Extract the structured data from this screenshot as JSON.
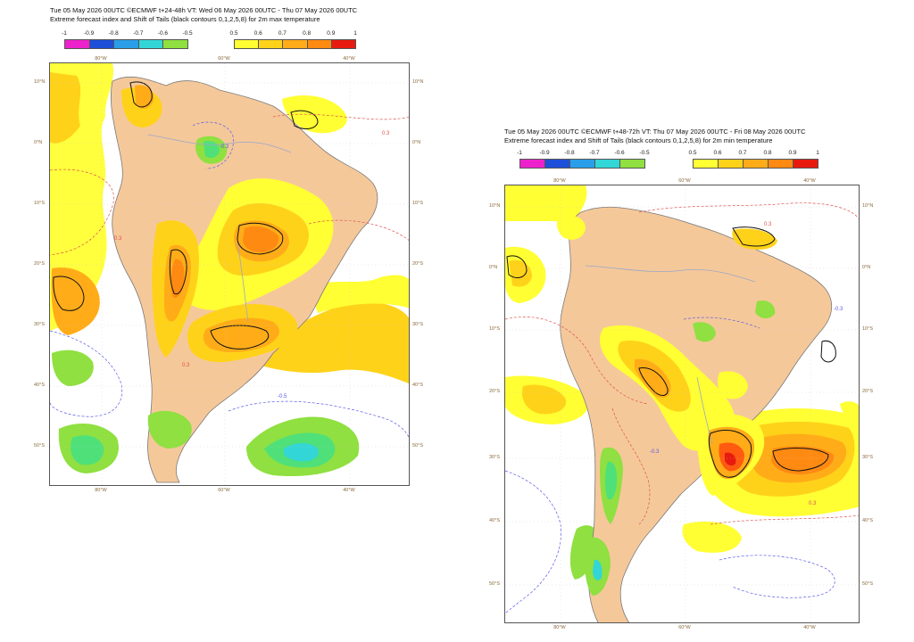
{
  "panels": [
    {
      "header_line1": "Tue 05 May 2026 00UTC ©ECMWF t+24-48h  VT: Wed 06 May 2026 00UTC - Thu 07 May 2026 00UTC",
      "header_line2": "Extreme forecast index and Shift of Tails (black contours 0,1,2,5,8) for 2m max temperature",
      "neg_legend": [
        "-1",
        "-0.9",
        "-0.8",
        "-0.7",
        "-0.6",
        "-0.5"
      ],
      "pos_legend": [
        "0.5",
        "0.6",
        "0.7",
        "0.8",
        "0.9",
        "1"
      ],
      "lat_labels": [
        "10°N",
        "0°N",
        "10°S",
        "20°S",
        "30°S",
        "40°S",
        "50°S"
      ],
      "lon_labels": [
        "80°W",
        "60°W",
        "40°W"
      ],
      "contour_labels": [
        "-0.3",
        "0.3",
        "-0.5",
        "0.3",
        "0.3"
      ]
    },
    {
      "header_line1": "Tue 05 May 2026 00UTC ©ECMWF t+48-72h  VT: Thu 07 May 2026 00UTC - Fri 08 May 2026 00UTC",
      "header_line2": "Extreme forecast index and Shift of Tails (black contours 0,1,2,5,8) for 2m min temperature",
      "neg_legend": [
        "-1",
        "-0.9",
        "-0.8",
        "-0.7",
        "-0.6",
        "-0.5"
      ],
      "pos_legend": [
        "0.5",
        "0.6",
        "0.7",
        "0.8",
        "0.9",
        "1"
      ],
      "lat_labels": [
        "10°N",
        "0°N",
        "10°S",
        "20°S",
        "30°S",
        "40°S",
        "50°S"
      ],
      "lon_labels": [
        "80°W",
        "60°W",
        "40°W"
      ],
      "contour_labels": [
        "-0.3",
        "0.3",
        "0.3",
        "-0.3"
      ]
    }
  ],
  "colors": {
    "neg": [
      "#ee22cc",
      "#1e4fd8",
      "#2a9ee8",
      "#33d6d6",
      "#4fe07a",
      "#8fe040"
    ],
    "pos": [
      "#ffff33",
      "#ffd21a",
      "#ffac18",
      "#ff8a12",
      "#ff5a10",
      "#e81a10"
    ],
    "land": "#f5c89a",
    "sea": "#ffffff",
    "pos_contour": "#e05050",
    "neg_contour": "#5a5ae8",
    "coast": "#7a7a7a",
    "sot": "#111111"
  }
}
